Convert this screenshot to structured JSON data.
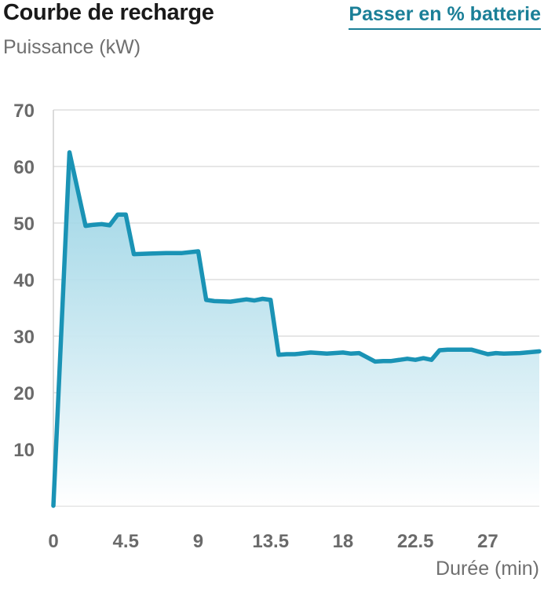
{
  "header": {
    "title": "Courbe de recharge",
    "toggle_label": "Passer en % batterie"
  },
  "colors": {
    "line": "#1a93b5",
    "fill_top": "#8fcfe2",
    "fill_bottom": "#ffffff",
    "grid": "#dddddd",
    "axis": "#cfcfcf",
    "link": "#1a7f97"
  },
  "chart_data": {
    "type": "area",
    "title": "Courbe de recharge",
    "ylabel": "Puissance (kW)",
    "xlabel": "Durée (min)",
    "xlim": [
      0,
      30.2
    ],
    "ylim": [
      0,
      70
    ],
    "y_ticks": [
      10,
      20,
      30,
      40,
      50,
      60,
      70
    ],
    "x_ticks": [
      0,
      4.5,
      9,
      13.5,
      18,
      22.5,
      27
    ],
    "x_tick_labels": [
      "0",
      "4.5",
      "9",
      "13.5",
      "18",
      "22.5",
      "27"
    ],
    "series": [
      {
        "name": "Puissance",
        "x": [
          0,
          1,
          2,
          2.5,
          3,
          3.5,
          4,
          4.5,
          5,
          6,
          7,
          8,
          9,
          9.5,
          10,
          11,
          12,
          12.5,
          13,
          13.5,
          14,
          14.5,
          15,
          16,
          17,
          18,
          18.5,
          19,
          20,
          20.5,
          21,
          22,
          22.5,
          23,
          23.5,
          24,
          24.5,
          25,
          26,
          27,
          27.5,
          28,
          29,
          30.2
        ],
        "y": [
          0,
          62.5,
          49.5,
          49.7,
          49.8,
          49.6,
          51.5,
          51.5,
          44.5,
          44.6,
          44.7,
          44.7,
          45,
          36.4,
          36.2,
          36.1,
          36.5,
          36.3,
          36.6,
          36.4,
          26.7,
          26.8,
          26.8,
          27.1,
          26.9,
          27.1,
          26.9,
          27,
          25.5,
          25.6,
          25.6,
          26,
          25.8,
          26.1,
          25.8,
          27.5,
          27.6,
          27.6,
          27.6,
          26.8,
          27,
          26.9,
          27,
          27.3
        ]
      }
    ]
  }
}
